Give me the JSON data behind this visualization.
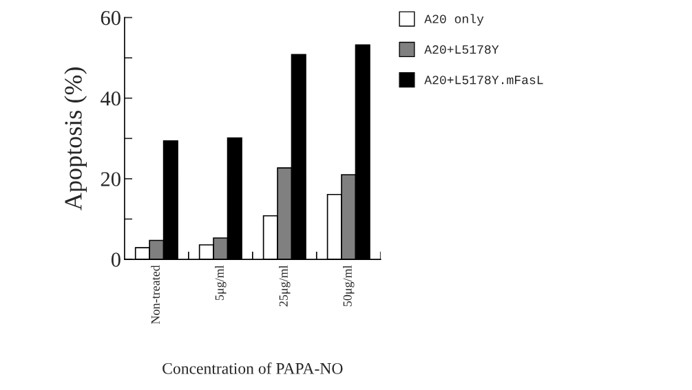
{
  "chart_data": {
    "type": "bar",
    "xlabel": "Concentration of PAPA-NO",
    "ylabel": "Apoptosis (%)",
    "categories": [
      "Non-treated",
      "5μg/ml",
      "25μg/ml",
      "50μg/ml"
    ],
    "series": [
      {
        "name": "A20 only",
        "color": "#ffffff",
        "values": [
          2.9,
          3.6,
          10.8,
          16.1
        ]
      },
      {
        "name": "A20+L5178Y",
        "color": "#808080",
        "values": [
          4.7,
          5.3,
          22.7,
          21.0
        ]
      },
      {
        "name": "A20+L5178Y.mFasL",
        "color": "#000000",
        "values": [
          29.4,
          30.1,
          50.8,
          53.2
        ]
      }
    ],
    "ylim": [
      0,
      60
    ],
    "yticks": [
      0,
      {
        "value": 10,
        "label": null
      },
      20,
      {
        "value": 30,
        "label": null
      },
      40,
      {
        "value": 50,
        "label": null
      },
      60
    ],
    "grid": false,
    "legend": "top right"
  }
}
